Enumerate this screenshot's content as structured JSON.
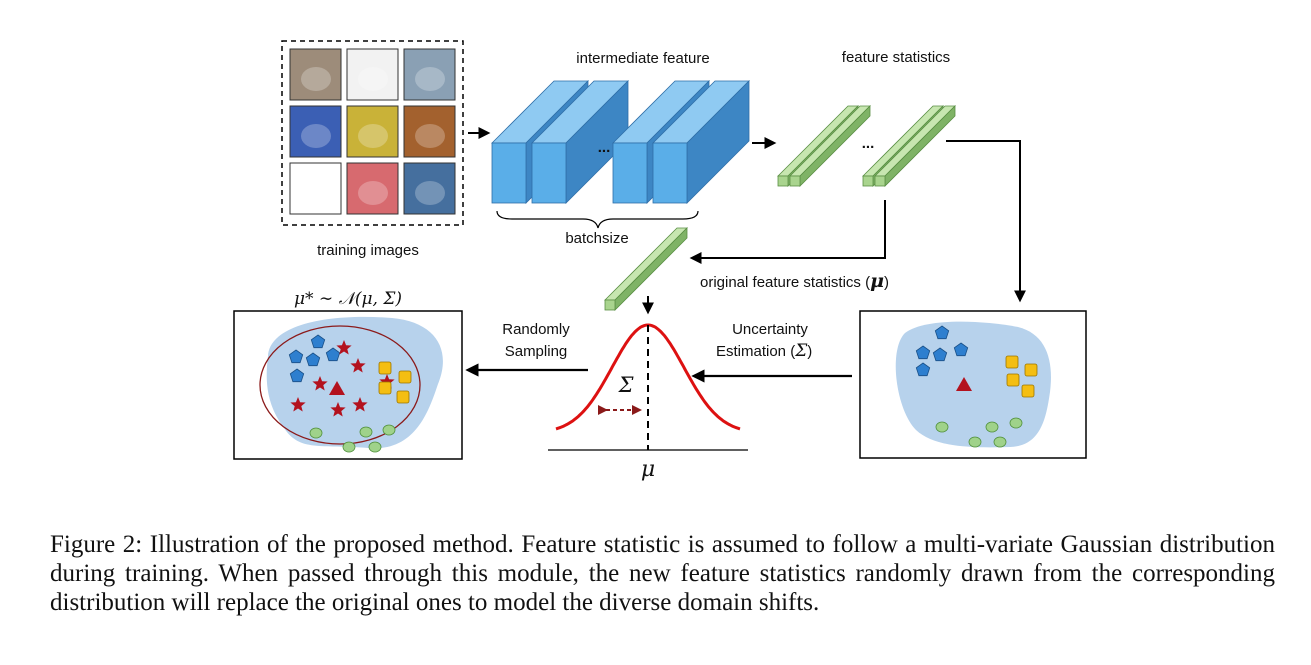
{
  "labels": {
    "training_images": "training images",
    "intermediate_feature": "intermediate feature",
    "feature_statistics": "feature statistics",
    "batchsize": "batchsize",
    "original_feature_statistics": "original feature statistics (",
    "mu": "μ",
    "close_paren": ")",
    "randomly": "Randomly",
    "sampling": "Sampling",
    "uncertainty": "Uncertainty",
    "estimation": "Estimation (",
    "sigma": "Σ",
    "ellipsis": "...",
    "distribution_formula": "μ* ∼ 𝒩(μ, Σ)"
  },
  "caption": "Figure 2: Illustration of the proposed method. Feature statistic is assumed to follow a multi-variate Gaussian distribution during training. When passed through this module, the new feature statistics randomly drawn from the corresponding distribution will replace the original ones to model the diverse domain shifts.",
  "colors": {
    "cube_front": "#5aaee8",
    "cube_side": "#3d86c4",
    "cube_top": "#8fcaf2",
    "bar_front": "#a9d48e",
    "bar_side": "#7fb366",
    "bar_top": "#c7e6b0",
    "blob": "#b7d2ec",
    "gaussian": "#dd1111",
    "star": "#b3121e",
    "pentagon": "#2e7fcf",
    "square": "#f4be12",
    "circle": "#9fd28a",
    "triangle": "#b3121e"
  },
  "thumbnails": [
    {
      "name": "house-image",
      "color": "#9d8c7a"
    },
    {
      "name": "giraffe-sketch-image",
      "color": "#f2f2f2"
    },
    {
      "name": "elephant-image",
      "color": "#8aa0b4"
    },
    {
      "name": "dog-painting-image",
      "color": "#3b5fb4"
    },
    {
      "name": "dog-cartoon-image",
      "color": "#c9b238"
    },
    {
      "name": "horse-painting-image",
      "color": "#a3612e"
    },
    {
      "name": "dog-sketch-image",
      "color": "#ffffff"
    },
    {
      "name": "dancer-painting-image",
      "color": "#d76a6f"
    },
    {
      "name": "horse-photo-image",
      "color": "#456f9e"
    }
  ]
}
